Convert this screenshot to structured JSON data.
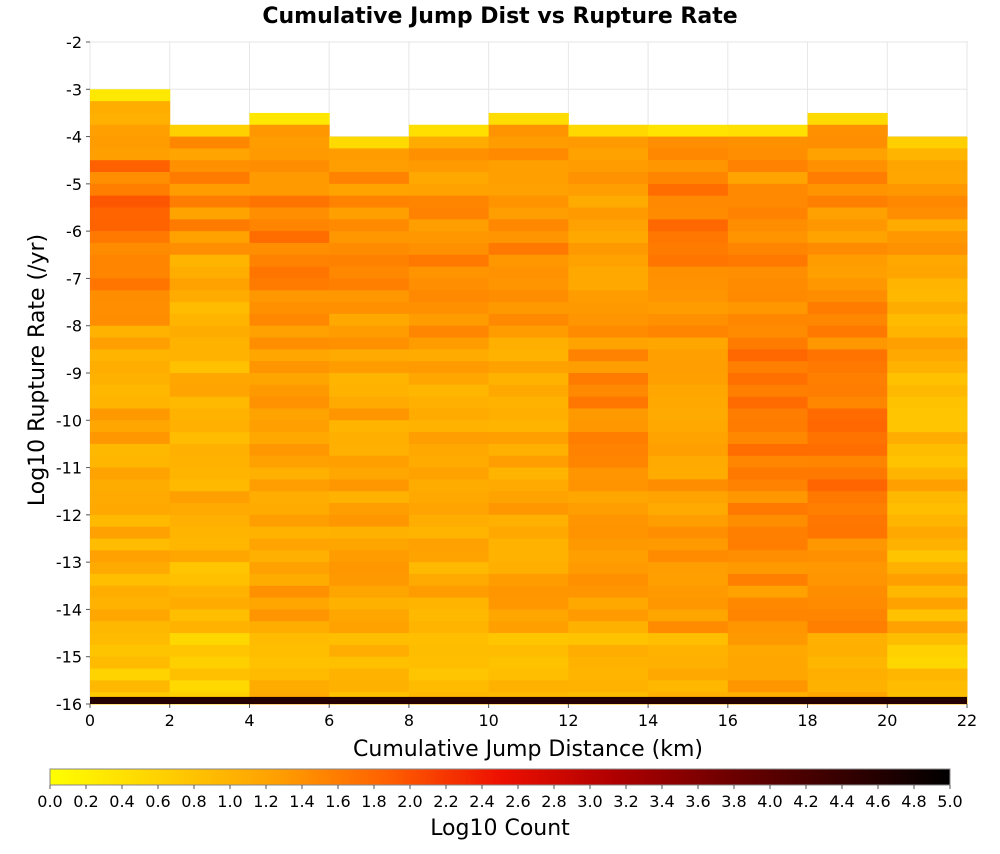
{
  "chart_data": {
    "type": "heatmap",
    "title": "Cumulative Jump Dist vs Rupture Rate",
    "xlabel": "Cumulative Jump Distance (km)",
    "ylabel": "Log10 Rupture Rate (/yr)",
    "colorbar_label": "Log10 Count",
    "xlim": [
      0,
      22
    ],
    "ylim": [
      -16,
      -2
    ],
    "x_ticks": [
      0,
      2,
      4,
      6,
      8,
      10,
      12,
      14,
      16,
      18,
      20,
      22
    ],
    "y_ticks": [
      -2,
      -3,
      -4,
      -5,
      -6,
      -7,
      -8,
      -9,
      -10,
      -11,
      -12,
      -13,
      -14,
      -15,
      -16
    ],
    "colorbar_range": [
      0.0,
      5.0
    ],
    "colorbar_ticks": [
      "0.0",
      "0.2",
      "0.4",
      "0.6",
      "0.8",
      "1.0",
      "1.2",
      "1.4",
      "1.6",
      "1.8",
      "2.0",
      "2.2",
      "2.4",
      "2.6",
      "2.8",
      "3.0",
      "3.2",
      "3.4",
      "3.6",
      "3.8",
      "4.0",
      "4.2",
      "4.4",
      "4.6",
      "4.8",
      "5.0"
    ],
    "colormap": [
      "#ffff00",
      "#ffd000",
      "#ffa000",
      "#ff6000",
      "#ee1000",
      "#b00000",
      "#700000",
      "#380000",
      "#000000"
    ],
    "x_bin_width": 2,
    "y_bin_height": 0.25,
    "y_bins_top": -2.0,
    "columns": [
      {
        "x": 0,
        "max_rate": -3.0,
        "level": 1.05,
        "var": 0.3,
        "peak_at": -5.5,
        "peak": 1.7
      },
      {
        "x": 2,
        "max_rate": -3.75,
        "level": 1.0,
        "var": 0.25,
        "peak_at": -5.0,
        "peak": 1.45
      },
      {
        "x": 4,
        "max_rate": -3.5,
        "level": 1.2,
        "var": 0.2,
        "peak_at": -6.0,
        "peak": 1.55
      },
      {
        "x": 6,
        "max_rate": -4.0,
        "level": 1.15,
        "var": 0.2,
        "peak_at": -6.0,
        "peak": 1.45
      },
      {
        "x": 8,
        "max_rate": -3.75,
        "level": 1.1,
        "var": 0.2,
        "peak_at": -6.5,
        "peak": 1.5
      },
      {
        "x": 10,
        "max_rate": -3.5,
        "level": 1.15,
        "var": 0.2,
        "peak_at": -6.0,
        "peak": 1.45
      },
      {
        "x": 12,
        "max_rate": -3.75,
        "level": 1.2,
        "var": 0.2,
        "peak_at": -10.0,
        "peak": 1.5
      },
      {
        "x": 14,
        "max_rate": -3.75,
        "level": 1.25,
        "var": 0.2,
        "peak_at": -6.0,
        "peak": 1.65
      },
      {
        "x": 16,
        "max_rate": -3.75,
        "level": 1.4,
        "var": 0.2,
        "peak_at": -9.5,
        "peak": 1.7
      },
      {
        "x": 18,
        "max_rate": -3.5,
        "level": 1.4,
        "var": 0.2,
        "peak_at": -10.5,
        "peak": 1.7
      },
      {
        "x": 20,
        "max_rate": -4.0,
        "level": 1.0,
        "var": 0.25,
        "peak_at": -5.5,
        "peak": 1.3
      }
    ],
    "bottom_row": {
      "y_range": [
        -16,
        -15.85
      ],
      "value": 4.6
    }
  }
}
